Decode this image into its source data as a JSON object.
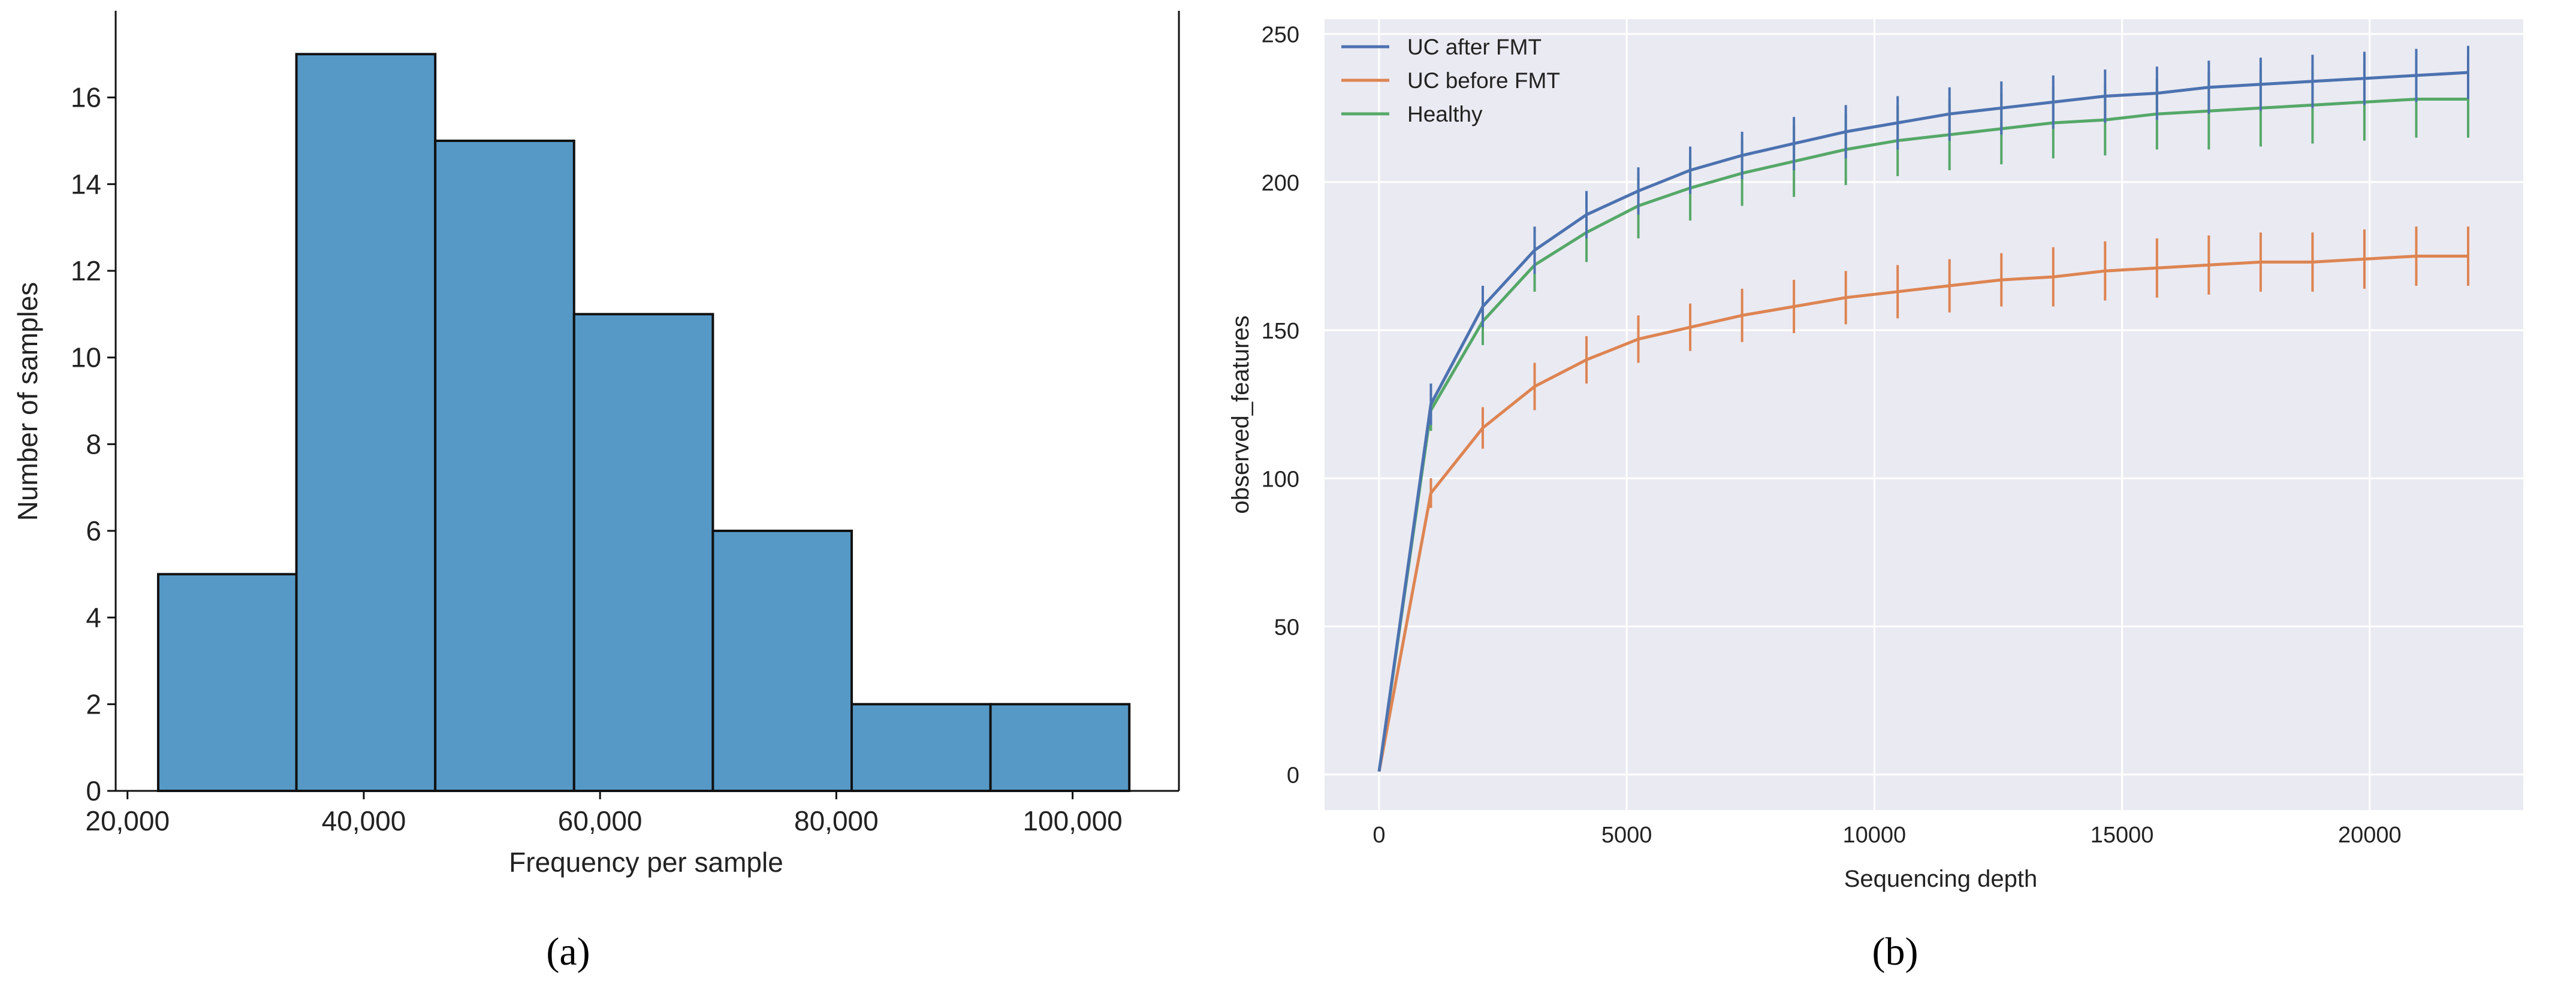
{
  "panels": {
    "a_label": "(a)",
    "b_label": "(b)"
  },
  "chart_data": [
    {
      "type": "bar",
      "subtype": "histogram",
      "xlabel": "Frequency per sample",
      "ylabel": "Number of samples",
      "bins": [
        {
          "x0": 22600,
          "x1": 34300,
          "count": 5
        },
        {
          "x0": 34300,
          "x1": 46050,
          "count": 17
        },
        {
          "x0": 46050,
          "x1": 57800,
          "count": 15
        },
        {
          "x0": 57800,
          "x1": 69550,
          "count": 11
        },
        {
          "x0": 69550,
          "x1": 81300,
          "count": 6
        },
        {
          "x0": 81300,
          "x1": 93050,
          "count": 2
        },
        {
          "x0": 93050,
          "x1": 104800,
          "count": 2
        }
      ],
      "xlim": [
        19000,
        109000
      ],
      "ylim": [
        0,
        18
      ],
      "xticks": [
        20000,
        40000,
        60000,
        80000,
        100000
      ],
      "xtick_labels": [
        "20,000",
        "40,000",
        "60,000",
        "80,000",
        "100,000"
      ],
      "yticks": [
        0,
        2,
        4,
        6,
        8,
        10,
        12,
        14,
        16
      ],
      "ytick_labels": [
        "0",
        "2",
        "4",
        "6",
        "8",
        "10",
        "12",
        "14",
        "16"
      ],
      "grid": false,
      "colors": {
        "bar_fill": "#5699C6",
        "bar_edge": "#111111"
      }
    },
    {
      "type": "line",
      "subtype": "rarefaction with error bars",
      "xlabel": "Sequencing depth",
      "ylabel": "observed_features",
      "xlim": [
        -1100,
        23100
      ],
      "ylim": [
        -12,
        255
      ],
      "xticks": [
        0,
        5000,
        10000,
        15000,
        20000
      ],
      "xtick_labels": [
        "0",
        "5000",
        "10000",
        "15000",
        "20000"
      ],
      "yticks": [
        0,
        50,
        100,
        150,
        200,
        250
      ],
      "ytick_labels": [
        "0",
        "50",
        "100",
        "150",
        "200",
        "250"
      ],
      "grid": true,
      "legend_position": "upper-left",
      "x": [
        1,
        1047,
        2094,
        3141,
        4188,
        5235,
        6282,
        7329,
        8376,
        9423,
        10470,
        11517,
        12564,
        13611,
        14658,
        15705,
        16752,
        17799,
        18846,
        19893,
        20940,
        21987
      ],
      "series": [
        {
          "name": "UC after FMT",
          "color": "#4C72B0",
          "values": [
            1,
            125,
            158,
            177,
            189,
            197,
            204,
            209,
            213,
            217,
            220,
            223,
            225,
            227,
            229,
            230,
            232,
            233,
            234,
            235,
            236,
            237
          ],
          "err": [
            0,
            7,
            7,
            8,
            8,
            8,
            8,
            8,
            9,
            9,
            9,
            9,
            9,
            9,
            9,
            9,
            9,
            9,
            9,
            9,
            9,
            9
          ]
        },
        {
          "name": "UC before FMT",
          "color": "#DD8452",
          "values": [
            1,
            95,
            117,
            131,
            140,
            147,
            151,
            155,
            158,
            161,
            163,
            165,
            167,
            168,
            170,
            171,
            172,
            173,
            173,
            174,
            175,
            175
          ],
          "err": [
            0,
            5,
            7,
            8,
            8,
            8,
            8,
            9,
            9,
            9,
            9,
            9,
            9,
            10,
            10,
            10,
            10,
            10,
            10,
            10,
            10,
            10
          ]
        },
        {
          "name": "Healthy",
          "color": "#55A868",
          "values": [
            1,
            123,
            153,
            172,
            183,
            192,
            198,
            203,
            207,
            211,
            214,
            216,
            218,
            220,
            221,
            223,
            224,
            225,
            226,
            227,
            228,
            228
          ],
          "err": [
            0,
            7,
            8,
            9,
            10,
            11,
            11,
            11,
            12,
            12,
            12,
            12,
            12,
            12,
            12,
            12,
            13,
            13,
            13,
            13,
            13,
            13
          ]
        }
      ],
      "colors": {
        "plot_background": "#EAEAF2",
        "grid": "#ffffff"
      }
    }
  ]
}
